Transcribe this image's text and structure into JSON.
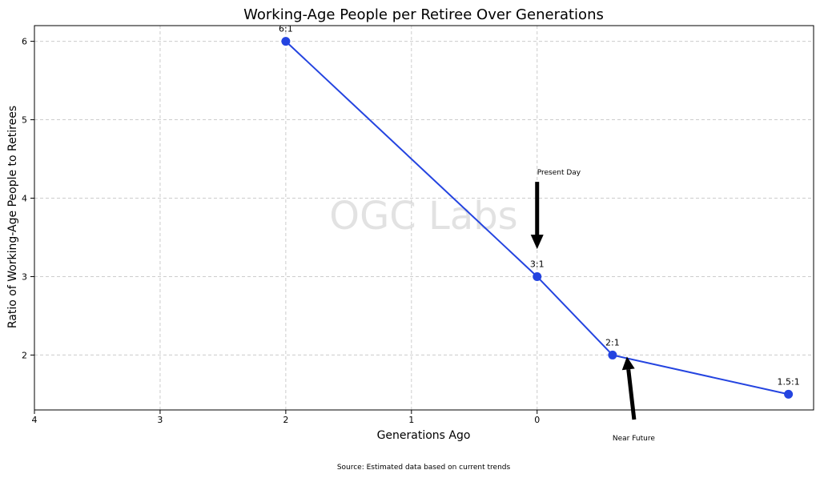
{
  "chart_data": {
    "type": "line",
    "title": "Working-Age People per Retiree Over Generations",
    "xlabel": "Generations Ago",
    "ylabel": "Ratio of Working-Age People to Retirees",
    "x_reversed": true,
    "xlim": [
      4,
      -2.2
    ],
    "ylim": [
      1.3,
      6.2
    ],
    "xticks": [
      4,
      3,
      2,
      1,
      0
    ],
    "xtick_labels": [
      "4",
      "3",
      "2",
      "1",
      "0"
    ],
    "yticks": [
      2,
      3,
      4,
      5,
      6
    ],
    "ytick_labels": [
      "2",
      "3",
      "4",
      "5",
      "6"
    ],
    "grid": true,
    "series": [
      {
        "color": "#2444e0",
        "x": [
          2,
          0,
          -0.6,
          -2
        ],
        "y": [
          6,
          3,
          2,
          1.5
        ],
        "labels": [
          "6:1",
          "3:1",
          "2:1",
          "1.5:1"
        ]
      }
    ],
    "annotations": [
      {
        "text": "Present Day",
        "x": 0,
        "y": 3.35,
        "direction": "down"
      },
      {
        "text": "Near Future",
        "x": -0.6,
        "y": 2.0,
        "direction": "up"
      }
    ],
    "watermark": "OGC Labs",
    "source": "Source: Estimated data based on current trends"
  }
}
